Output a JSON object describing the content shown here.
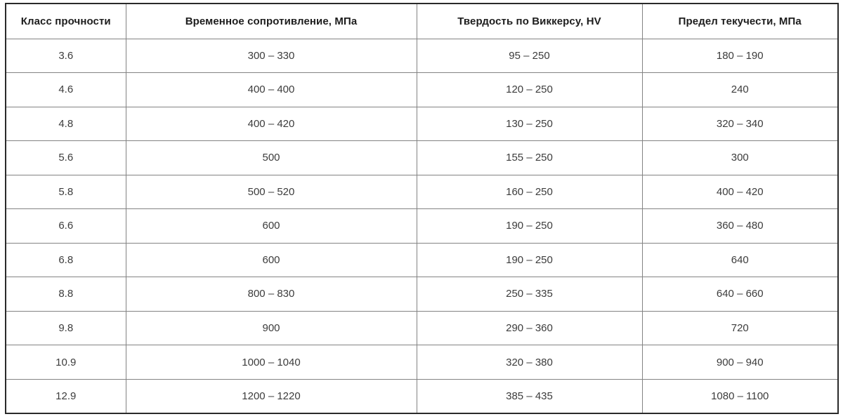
{
  "chart_data": {
    "type": "table",
    "columns": [
      "Класс прочности",
      "Временное сопротивление, МПа",
      "Твердость по Виккерсу, HV",
      "Предел текучести, МПа"
    ],
    "rows": [
      [
        "3.6",
        "300 – 330",
        "95 – 250",
        "180 – 190"
      ],
      [
        "4.6",
        "400 – 400",
        "120 – 250",
        "240"
      ],
      [
        "4.8",
        "400 – 420",
        "130 – 250",
        "320 – 340"
      ],
      [
        "5.6",
        "500",
        "155 – 250",
        "300"
      ],
      [
        "5.8",
        "500 – 520",
        "160 – 250",
        "400 – 420"
      ],
      [
        "6.6",
        "600",
        "190 – 250",
        "360 – 480"
      ],
      [
        "6.8",
        "600",
        "190 – 250",
        "640"
      ],
      [
        "8.8",
        "800 – 830",
        "250 – 335",
        "640 – 660"
      ],
      [
        "9.8",
        "900",
        "290 – 360",
        "720"
      ],
      [
        "10.9",
        "1000 – 1040",
        "320 – 380",
        "900 – 940"
      ],
      [
        "12.9",
        "1200 – 1220",
        "385 – 435",
        "1080 – 1100"
      ]
    ],
    "layout": {
      "grid": true,
      "header_row": true,
      "text_align": "center"
    }
  },
  "colors": {
    "outer_border": "#2a2a2a",
    "grid_line": "#838383",
    "header_text": "#1d1d1d",
    "cell_text": "#3c3c3c",
    "background": "#ffffff"
  }
}
